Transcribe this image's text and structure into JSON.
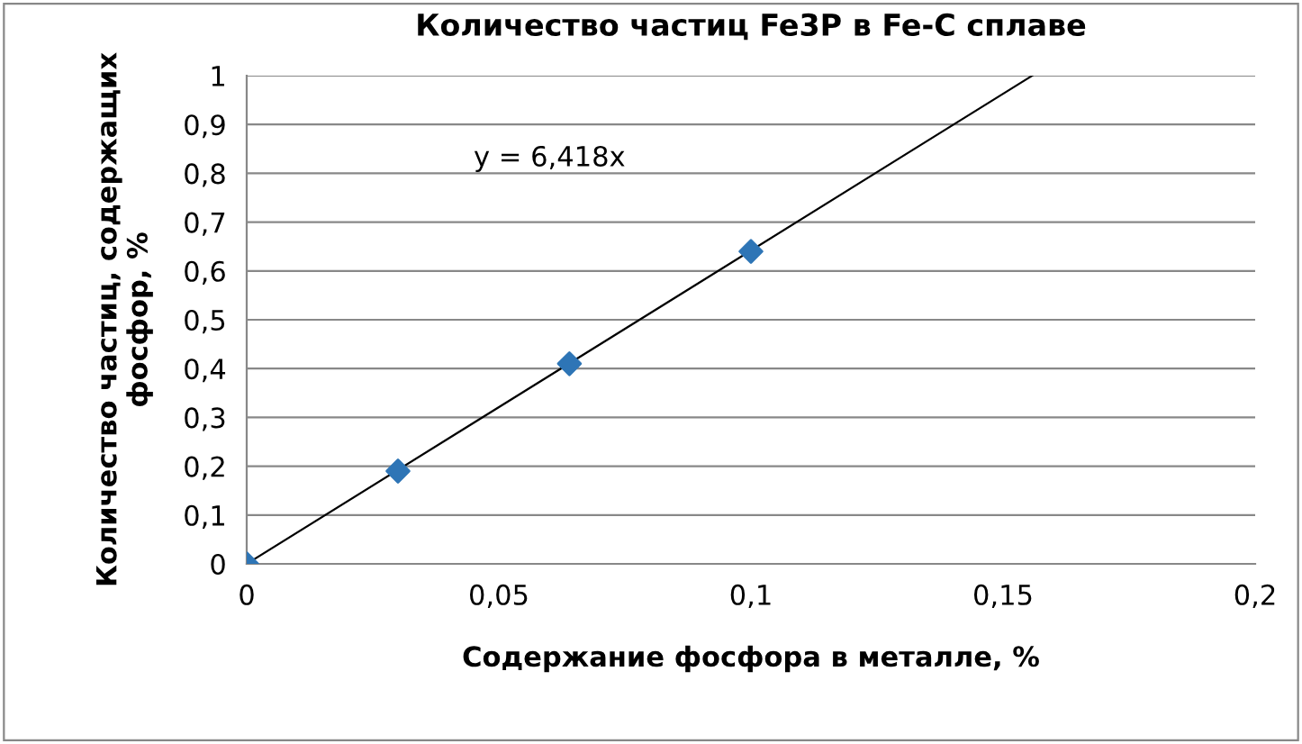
{
  "chart_data": {
    "type": "scatter",
    "title": "Количество частиц Fe3P в Fe-C сплаве",
    "xlabel": "Содержание фосфора в металле, %",
    "ylabel": "Количество частиц, содержащих фосфор, %",
    "series": [
      {
        "color": "#2e75b6",
        "marker": "diamond",
        "x": [
          0,
          0.03,
          0.064,
          0.1
        ],
        "values": [
          0,
          0.19,
          0.41,
          0.64
        ]
      },
      {
        "type": "line",
        "color": "#000000",
        "marker": "none",
        "line_style": "solid",
        "x": [
          0,
          0.1558
        ],
        "values": [
          0,
          1
        ]
      }
    ],
    "annotations": [
      "y = 6,418x"
    ],
    "xlim": [
      0,
      0.2
    ],
    "ylim": [
      0,
      1
    ],
    "xticks": [
      0,
      {
        "value": 0.05,
        "label": "0,05"
      },
      {
        "value": 0.1,
        "label": "0,1"
      },
      {
        "value": 0.15,
        "label": "0,15"
      },
      {
        "value": 0.2,
        "label": "0,2"
      }
    ],
    "yticks": [
      0,
      {
        "value": 0.1,
        "label": "0,1"
      },
      {
        "value": 0.2,
        "label": "0,2"
      },
      {
        "value": 0.3,
        "label": "0,3"
      },
      {
        "value": 0.4,
        "label": "0,4"
      },
      {
        "value": 0.5,
        "label": "0,5"
      },
      {
        "value": 0.6,
        "label": "0,6"
      },
      {
        "value": 0.7,
        "label": "0,7"
      },
      {
        "value": 0.8,
        "label": "0,8"
      },
      {
        "value": 0.9,
        "label": "0,9"
      },
      {
        "value": 1,
        "label": "1"
      }
    ],
    "grid": "y",
    "legend": false
  }
}
